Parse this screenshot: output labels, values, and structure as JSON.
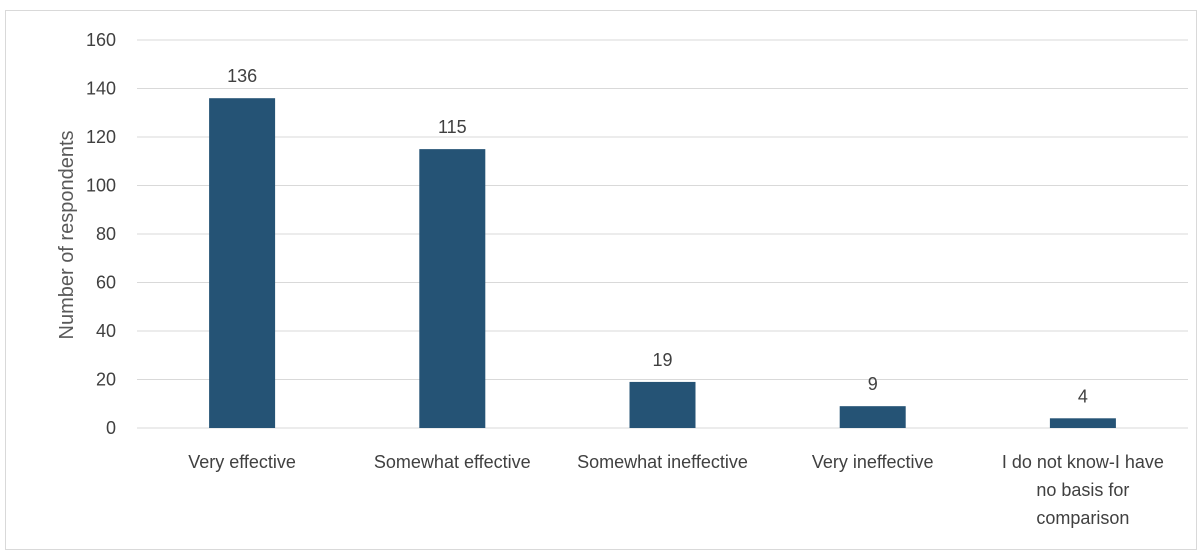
{
  "chart_data": {
    "type": "bar",
    "categories": [
      [
        "Very effective"
      ],
      [
        "Somewhat effective"
      ],
      [
        "Somewhat ineffective"
      ],
      [
        "Very ineffective"
      ],
      [
        "I do not know-I have",
        "no basis for",
        "comparison"
      ]
    ],
    "values": [
      136,
      115,
      19,
      9,
      4
    ],
    "data_labels": [
      "136",
      "115",
      "19",
      "9",
      "4"
    ],
    "ylabel": "Number of respondents",
    "ylim": [
      0,
      160
    ],
    "yticks": [
      0,
      20,
      40,
      60,
      80,
      100,
      120,
      140,
      160
    ],
    "grid": "horizontal",
    "bar_color": "#255375",
    "grid_color": "#d9d9d9"
  }
}
